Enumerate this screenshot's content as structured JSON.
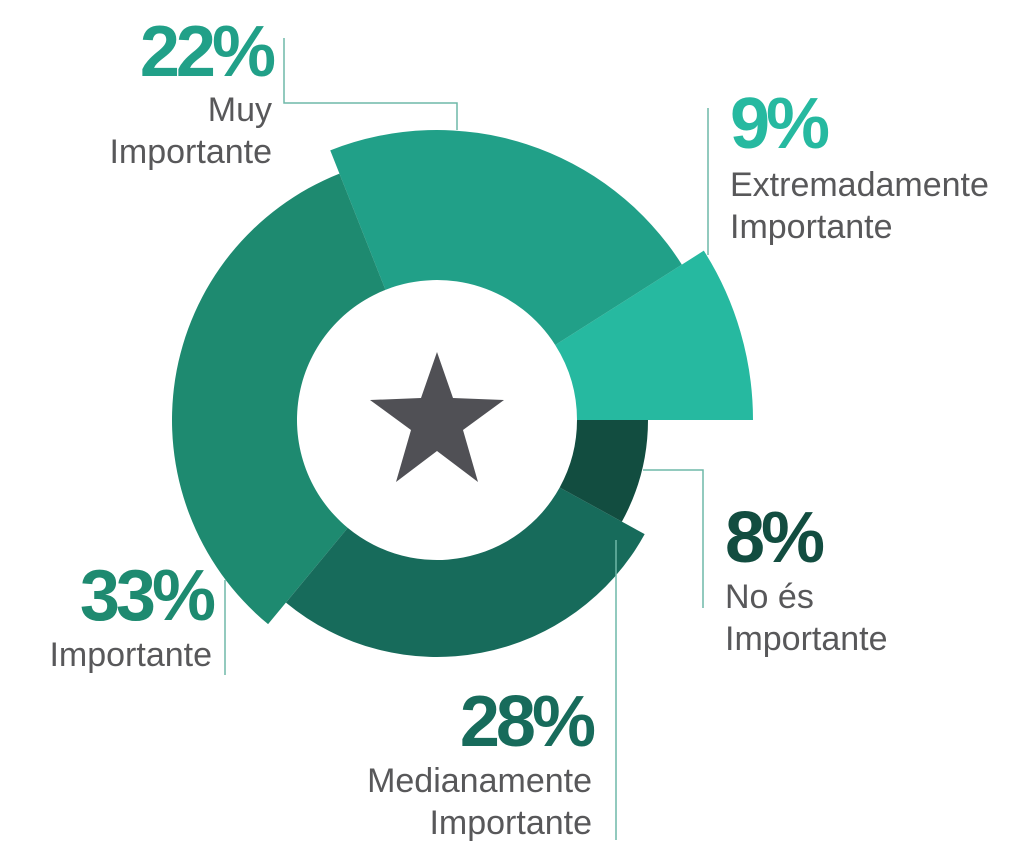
{
  "chart_data": {
    "type": "pie",
    "categories": [
      "Extremadamente Importante",
      "Muy Importante",
      "Importante",
      "Medianamente Importante",
      "No és Importante"
    ],
    "values": [
      9,
      22,
      33,
      28,
      8
    ],
    "value_labels": [
      "9%",
      "22%",
      "33%",
      "28%",
      "8%"
    ],
    "colors": [
      "#26b9a0",
      "#21a088",
      "#1e8a70",
      "#176b5b",
      "#124d40"
    ]
  }
}
